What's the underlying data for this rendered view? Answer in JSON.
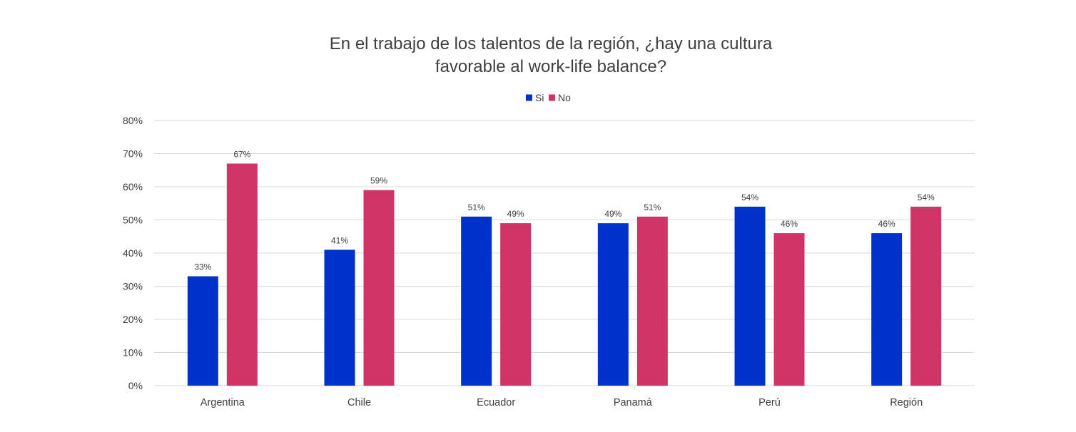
{
  "chart_data": {
    "type": "bar",
    "title": "En el trabajo de los talentos de la región, ¿hay una cultura favorable al work-life balance?",
    "title_lines": [
      "En el trabajo de los talentos de la región, ¿hay una cultura",
      "favorable al work-life balance?"
    ],
    "categories": [
      "Argentina",
      "Chile",
      "Ecuador",
      "Panamá",
      "Perú",
      "Región"
    ],
    "series": [
      {
        "name": "Si",
        "color": "#0033cc",
        "values": [
          33,
          41,
          51,
          49,
          54,
          46
        ]
      },
      {
        "name": "No",
        "color": "#d03366",
        "values": [
          67,
          59,
          49,
          51,
          46,
          54
        ]
      }
    ],
    "ylim": [
      0,
      80
    ],
    "yticks": [
      0,
      10,
      20,
      30,
      40,
      50,
      60,
      70,
      80
    ],
    "value_format": "percent",
    "grid": true,
    "legend_position": "top-center",
    "xlabel": "",
    "ylabel": ""
  }
}
